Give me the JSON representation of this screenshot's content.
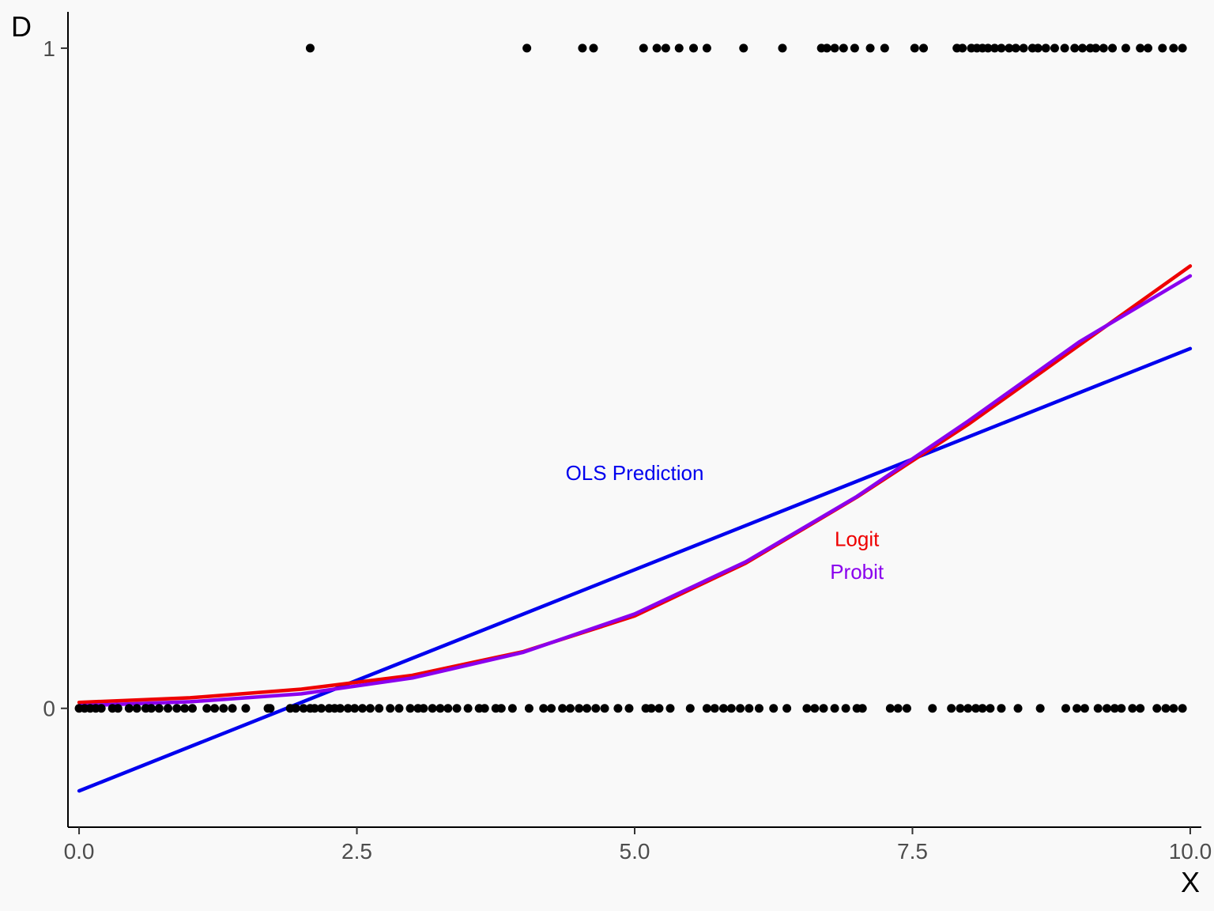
{
  "chart_data": {
    "type": "scatter",
    "xlabel": "X",
    "ylabel": "D",
    "xlim": [
      -0.1,
      10.1
    ],
    "ylim": [
      -0.18,
      1.055
    ],
    "x_ticks": [
      "0.0",
      "2.5",
      "5.0",
      "7.5",
      "10.0"
    ],
    "x_tick_values": [
      0,
      2.5,
      5,
      7.5,
      10
    ],
    "y_ticks": [
      "0",
      "1"
    ],
    "y_tick_values": [
      0,
      1
    ],
    "grid": false,
    "points_d1_x": [
      2.08,
      4.03,
      4.53,
      4.63,
      5.08,
      5.2,
      5.28,
      5.4,
      5.53,
      5.65,
      5.98,
      6.33,
      6.68,
      6.73,
      6.8,
      6.88,
      6.98,
      7.12,
      7.25,
      7.52,
      7.6,
      7.9,
      7.95,
      8.03,
      8.08,
      8.13,
      8.18,
      8.24,
      8.3,
      8.37,
      8.43,
      8.5,
      8.58,
      8.63,
      8.7,
      8.78,
      8.87,
      8.96,
      9.03,
      9.1,
      9.15,
      9.22,
      9.3,
      9.42,
      9.55,
      9.62,
      9.75,
      9.85,
      9.93
    ],
    "points_d0_x": [
      0.0,
      0.05,
      0.1,
      0.15,
      0.2,
      0.3,
      0.35,
      0.45,
      0.52,
      0.6,
      0.65,
      0.72,
      0.8,
      0.88,
      0.95,
      1.02,
      1.15,
      1.22,
      1.3,
      1.38,
      1.5,
      1.7,
      1.72,
      1.9,
      1.95,
      2.02,
      2.08,
      2.12,
      2.18,
      2.25,
      2.3,
      2.35,
      2.42,
      2.48,
      2.55,
      2.62,
      2.7,
      2.8,
      2.88,
      2.98,
      3.05,
      3.1,
      3.18,
      3.25,
      3.32,
      3.4,
      3.5,
      3.6,
      3.65,
      3.75,
      3.8,
      3.9,
      4.05,
      4.18,
      4.25,
      4.35,
      4.42,
      4.5,
      4.57,
      4.65,
      4.73,
      4.85,
      4.95,
      5.1,
      5.15,
      5.22,
      5.32,
      5.5,
      5.65,
      5.72,
      5.8,
      5.87,
      5.95,
      6.03,
      6.12,
      6.25,
      6.37,
      6.55,
      6.62,
      6.7,
      6.8,
      6.9,
      7.0,
      7.05,
      7.3,
      7.37,
      7.45,
      7.68,
      7.85,
      7.93,
      8.0,
      8.07,
      8.13,
      8.2,
      8.3,
      8.45,
      8.65,
      8.88,
      8.98,
      9.05,
      9.17,
      9.25,
      9.32,
      9.38,
      9.48,
      9.55,
      9.7,
      9.78,
      9.85,
      9.93
    ],
    "series": [
      {
        "name": "OLS Prediction",
        "color": "#0000ee",
        "x": [
          0,
          10
        ],
        "y": [
          -0.125,
          0.545
        ]
      },
      {
        "name": "Logit",
        "color": "#ee0000",
        "x": [
          0,
          1,
          2,
          3,
          4,
          5,
          6,
          7,
          8,
          9,
          10
        ],
        "y": [
          0.009,
          0.016,
          0.029,
          0.05,
          0.086,
          0.14,
          0.22,
          0.32,
          0.43,
          0.55,
          0.67
        ]
      },
      {
        "name": "Probit",
        "color": "#8a00ee",
        "x": [
          0,
          1,
          2,
          3,
          4,
          5,
          6,
          7,
          8,
          9,
          10
        ],
        "y": [
          0.004,
          0.01,
          0.022,
          0.046,
          0.085,
          0.143,
          0.222,
          0.321,
          0.435,
          0.555,
          0.655
        ]
      }
    ],
    "annotations": [
      {
        "text": "OLS Prediction",
        "color": "#0000ee",
        "x": 5.0,
        "y": 0.346
      },
      {
        "text": "Logit",
        "color": "#ee0000",
        "x": 7.0,
        "y": 0.246
      },
      {
        "text": "Probit",
        "color": "#8a00ee",
        "x": 7.0,
        "y": 0.196
      }
    ]
  }
}
